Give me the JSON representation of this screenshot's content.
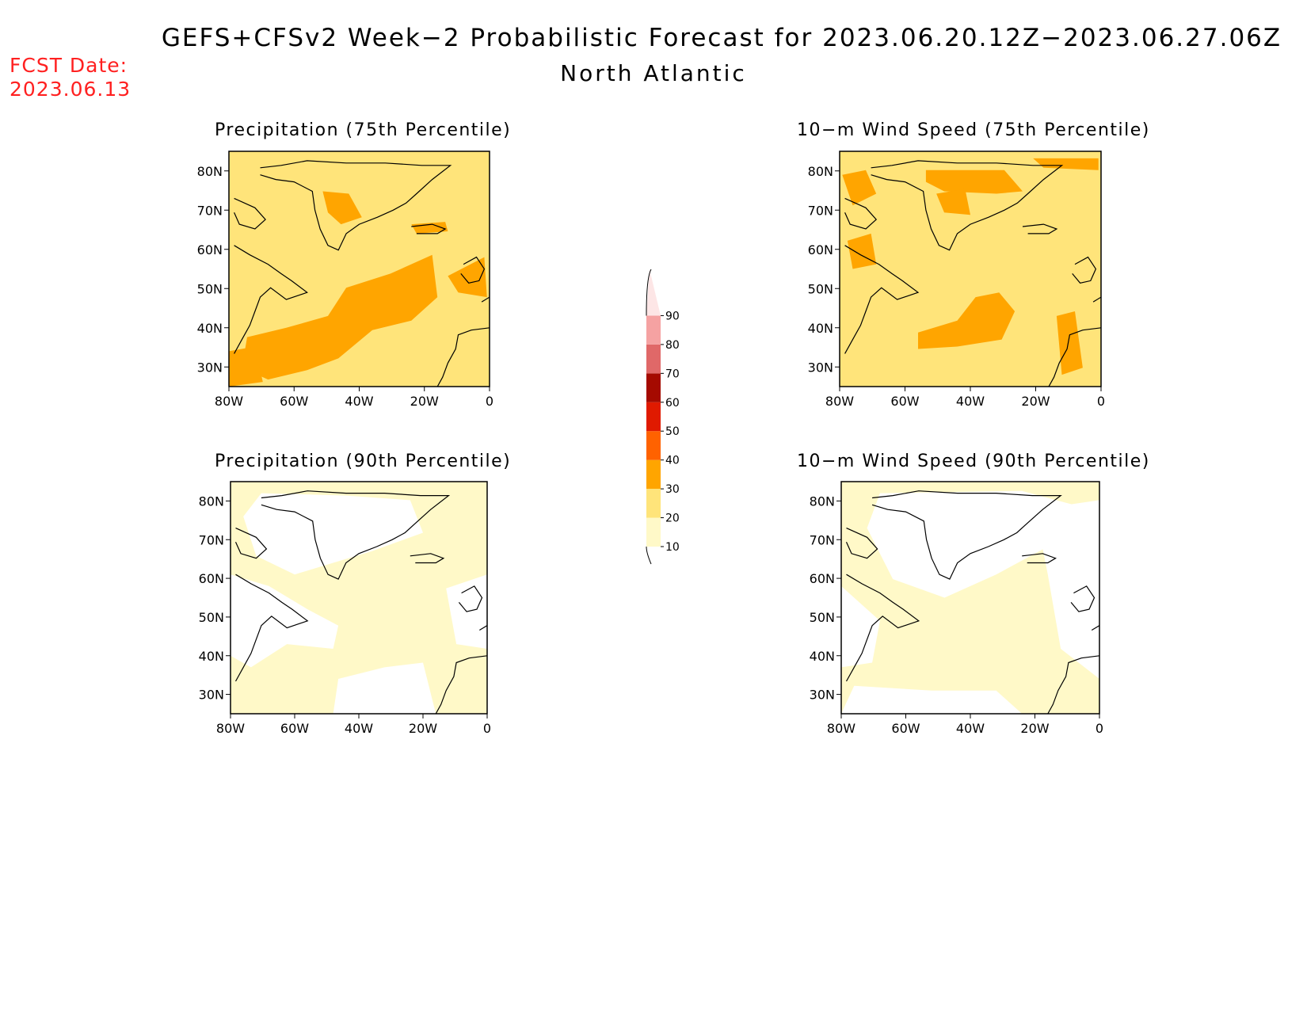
{
  "title": "GEFS+CFSv2 Week−2 Probabilistic Forecast for 2023.06.20.12Z−2023.06.27.06Z",
  "subtitle": "North Atlantic",
  "fcst_date_label": "FCST Date:",
  "fcst_date_value": "2023.06.13",
  "panels": [
    {
      "id": "precip75",
      "title": "Precipitation (75th Percentile)",
      "level": 2
    },
    {
      "id": "wind75",
      "title": "10−m Wind Speed (75th Percentile)",
      "level": 2
    },
    {
      "id": "precip90",
      "title": "Precipitation (90th Percentile)",
      "level": 1
    },
    {
      "id": "wind90",
      "title": "10−m Wind Speed (90th Percentile)",
      "level": 1
    }
  ],
  "axes": {
    "lat_ticks": [
      "80N",
      "70N",
      "60N",
      "50N",
      "40N",
      "30N"
    ],
    "lon_ticks": [
      "80W",
      "60W",
      "40W",
      "20W",
      "0"
    ]
  },
  "colorbar": {
    "levels": [
      10,
      20,
      30,
      40,
      50,
      60,
      70,
      80,
      90
    ],
    "colors": [
      "#fff9c8",
      "#ffe47a",
      "#ffa500",
      "#ff6200",
      "#e01a00",
      "#a50a00",
      "#e06868",
      "#f5a2a2",
      "#fde6e6"
    ]
  }
}
